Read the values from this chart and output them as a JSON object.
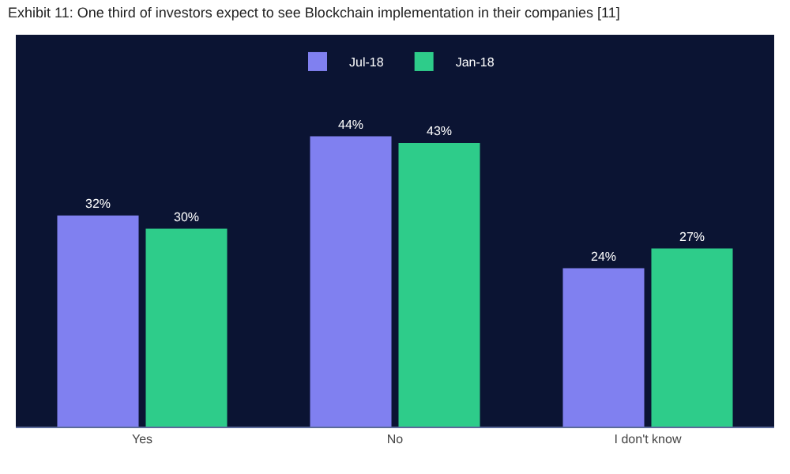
{
  "chart_data": {
    "type": "bar",
    "title": "Exhibit 11: One third of investors expect to see Blockchain implementation in their companies [11]",
    "categories": [
      "Yes",
      "No",
      "I don't know"
    ],
    "series": [
      {
        "name": "Jul-18",
        "color": "#8080f0",
        "values": [
          32,
          44,
          24
        ],
        "value_labels": [
          "32%",
          "44%",
          "24%"
        ]
      },
      {
        "name": "Jan-18",
        "color": "#2ecc8a",
        "values": [
          30,
          43,
          27
        ],
        "value_labels": [
          "30%",
          "43%",
          "27%"
        ]
      }
    ],
    "legend": "top"
  }
}
